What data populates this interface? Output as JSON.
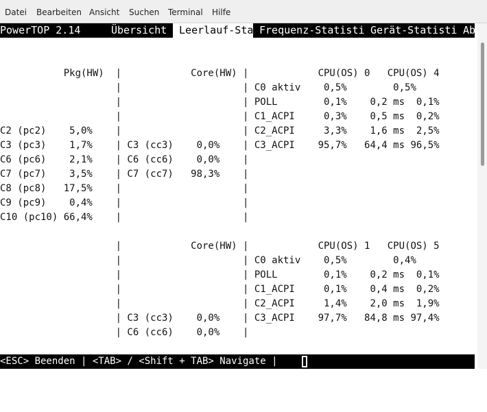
{
  "menu": [
    "Datei",
    "Bearbeiten",
    "Ansicht",
    "Suchen",
    "Terminal",
    "Hilfe"
  ],
  "tabs": [
    {
      "label": "PowerTOP 2.14     "
    },
    {
      "label": "Übersicht "
    },
    {
      "label": " Leerlauf-Sta"
    },
    {
      "label": "Frequenz-Statisti "
    },
    {
      "label": "Gerät-Statisti "
    },
    {
      "label": "Ab"
    }
  ],
  "screen_lines": [
    "",
    "",
    "           Pkg(HW)  |            Core(HW) |            CPU(OS) 0   CPU(OS) 4",
    "                    |                     | C0 aktiv    0,5%        0,5%",
    "                    |                     | POLL        0,1%    0,2 ms  0,1%",
    "                    |                     | C1_ACPI     0,3%    0,5 ms  0,2%",
    "C2 (pc2)    5,0%    |                     | C2_ACPI     3,3%    1,6 ms  2,5%",
    "C3 (pc3)    1,7%    | C3 (cc3)    0,0%    | C3_ACPI    95,7%   64,4 ms 96,5%",
    "C6 (pc6)    2,1%    | C6 (cc6)    0,0%    |",
    "C7 (pc7)    3,5%    | C7 (cc7)   98,3%    |",
    "C8 (pc8)   17,5%    |                     |",
    "C9 (pc9)    0,4%    |                     |",
    "C10 (pc10) 66,4%    |                     |",
    "",
    "                    |            Core(HW) |            CPU(OS) 1   CPU(OS) 5",
    "                    |                     | C0 aktiv    0,5%        0,4%",
    "                    |                     | POLL        0,1%    0,2 ms  0,1%",
    "                    |                     | C1_ACPI     0,1%    0,4 ms  0,2%",
    "                    |                     | C2_ACPI     1,4%    2,0 ms  1,9%",
    "                    | C3 (cc3)    0,0%    | C3_ACPI    97,7%   84,8 ms 97,4%",
    "                    | C6 (cc6)    0,0%    |",
    ""
  ],
  "status": "<ESC> Beenden | <TAB> / <Shift + TAB> Navigate |"
}
